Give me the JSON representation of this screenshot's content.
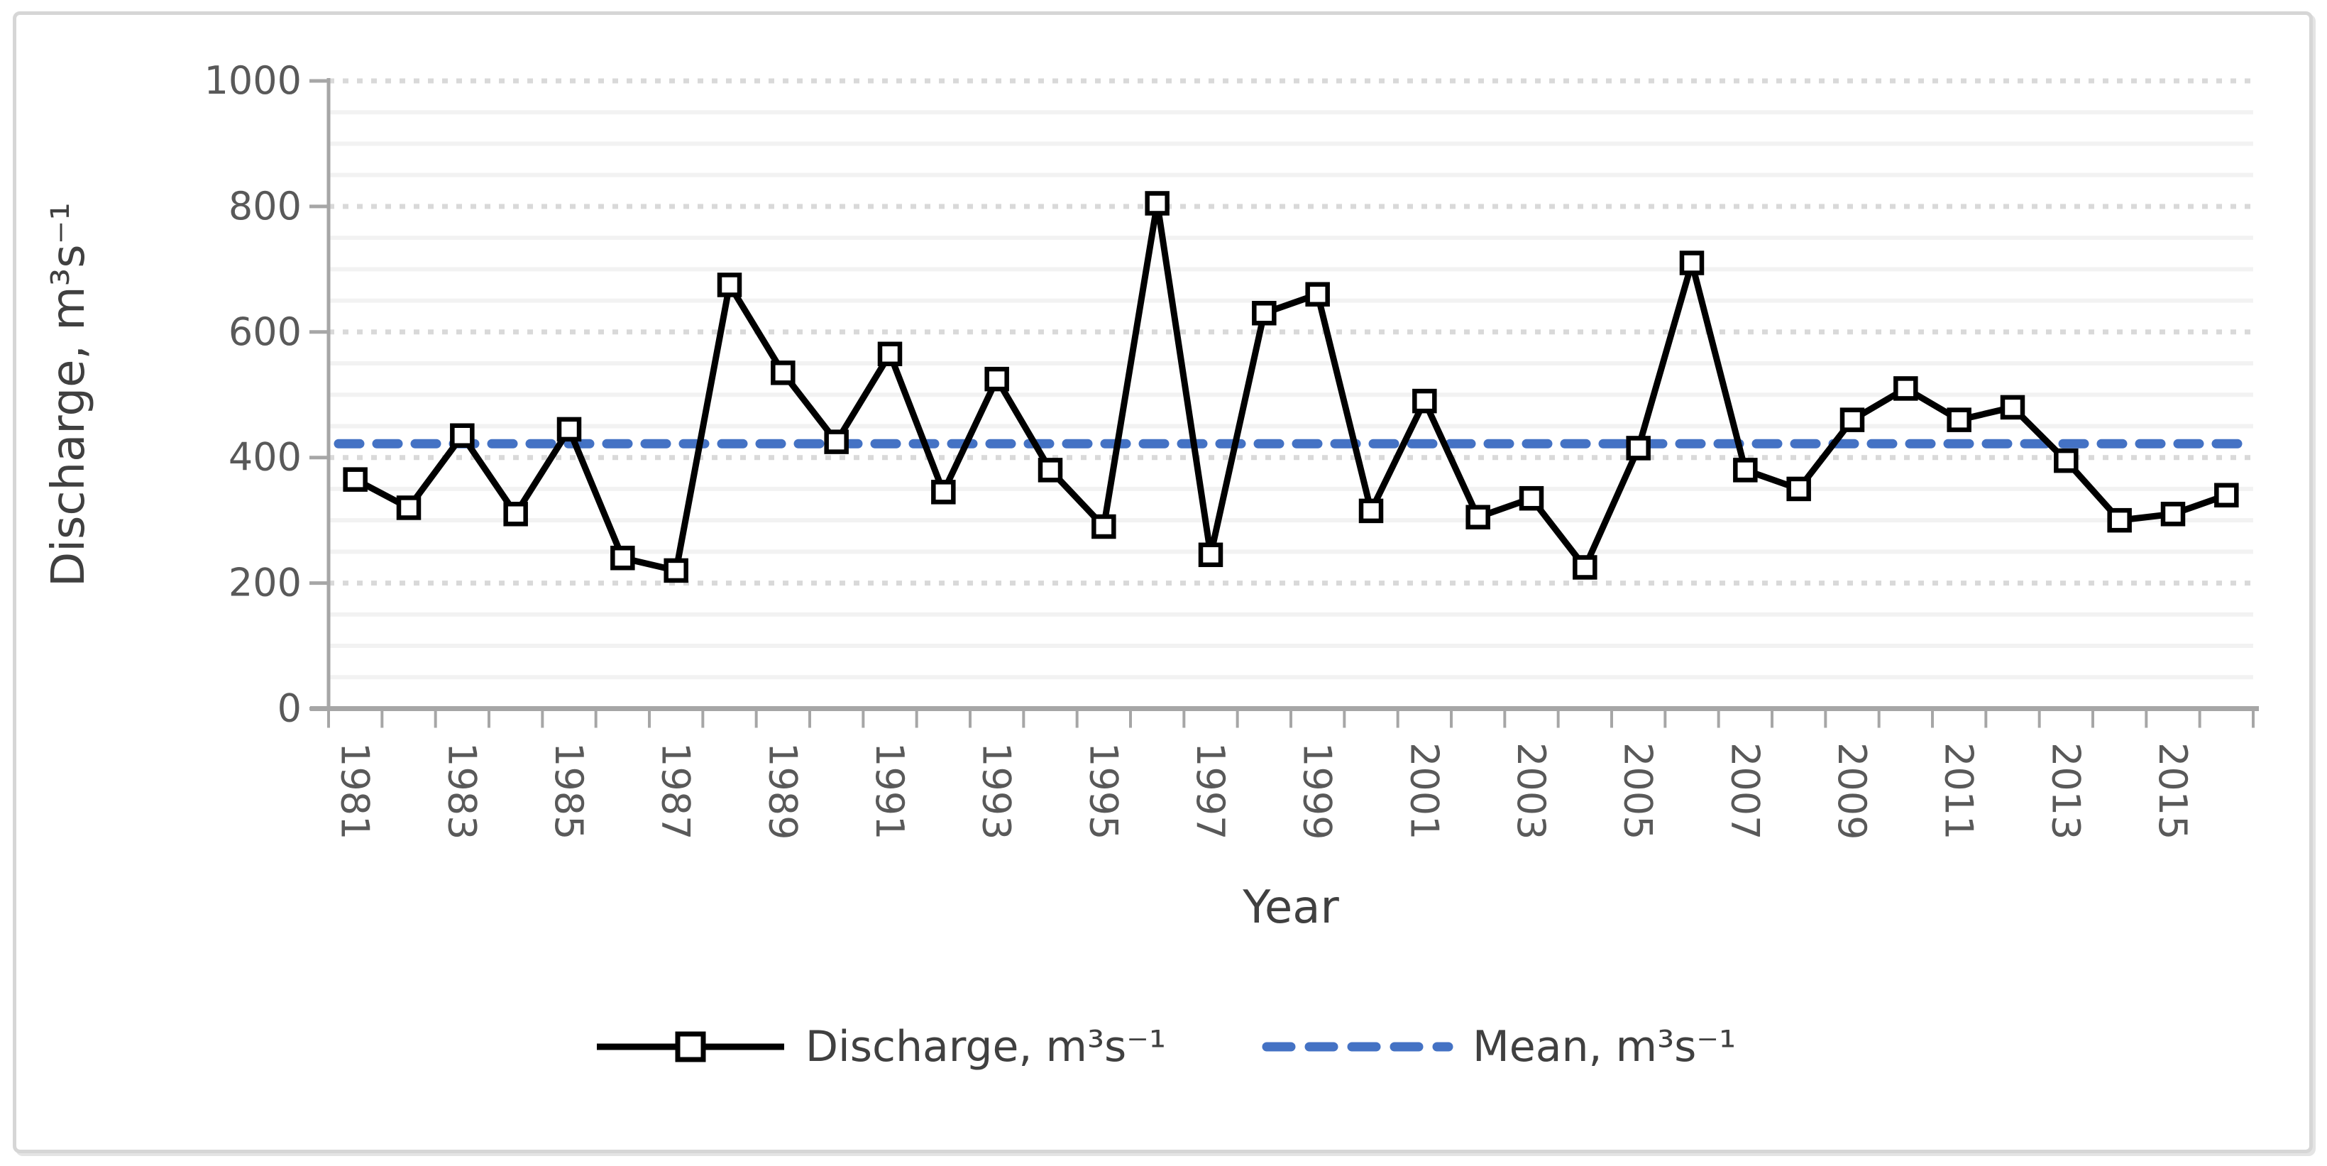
{
  "figure": {
    "background": "#FFFFFF",
    "border_color": "#D6D6D6"
  },
  "chart_data": {
    "type": "line",
    "title": "",
    "xlabel": "Year",
    "ylabel": "Discharge, m³s⁻¹",
    "x": [
      1981,
      1982,
      1983,
      1984,
      1985,
      1986,
      1987,
      1988,
      1989,
      1990,
      1991,
      1992,
      1993,
      1994,
      1995,
      1996,
      1997,
      1998,
      1999,
      2000,
      2001,
      2002,
      2003,
      2004,
      2005,
      2006,
      2007,
      2008,
      2009,
      2010,
      2011,
      2012,
      2013,
      2014,
      2015,
      2016
    ],
    "xtick_labels": [
      "1981",
      "1983",
      "1985",
      "1987",
      "1989",
      "1991",
      "1993",
      "1995",
      "1997",
      "1999",
      "2001",
      "2003",
      "2005",
      "2007",
      "2009",
      "2011",
      "2013",
      "2015"
    ],
    "ytick_labels": [
      "0",
      "200",
      "400",
      "600",
      "800",
      "1000"
    ],
    "yticks": [
      0,
      200,
      400,
      600,
      800,
      1000
    ],
    "ylim": [
      0,
      1000
    ],
    "grid": {
      "major_interval": 200,
      "minor_interval": 50,
      "major_style": "dotted",
      "minor_style": "solid"
    },
    "legend_position": "bottom",
    "series": [
      {
        "name": "Discharge, m³s⁻¹",
        "type": "line-markers",
        "marker": "open-square",
        "color": "#000000",
        "values": [
          365,
          320,
          435,
          310,
          445,
          240,
          220,
          675,
          535,
          425,
          565,
          345,
          525,
          380,
          290,
          805,
          245,
          630,
          660,
          315,
          490,
          305,
          335,
          225,
          415,
          710,
          380,
          350,
          460,
          510,
          460,
          480,
          395,
          300,
          310,
          340
        ]
      },
      {
        "name": "Mean, m³s⁻¹",
        "type": "horizontal-dashed-line",
        "color": "#4472C4",
        "value": 422
      }
    ],
    "colors": {
      "grid_major": "#D9D9D9",
      "grid_minor": "#F2F2F2",
      "axis": "#A6A6A6",
      "tick_text": "#595959",
      "title_text": "#404040"
    }
  }
}
